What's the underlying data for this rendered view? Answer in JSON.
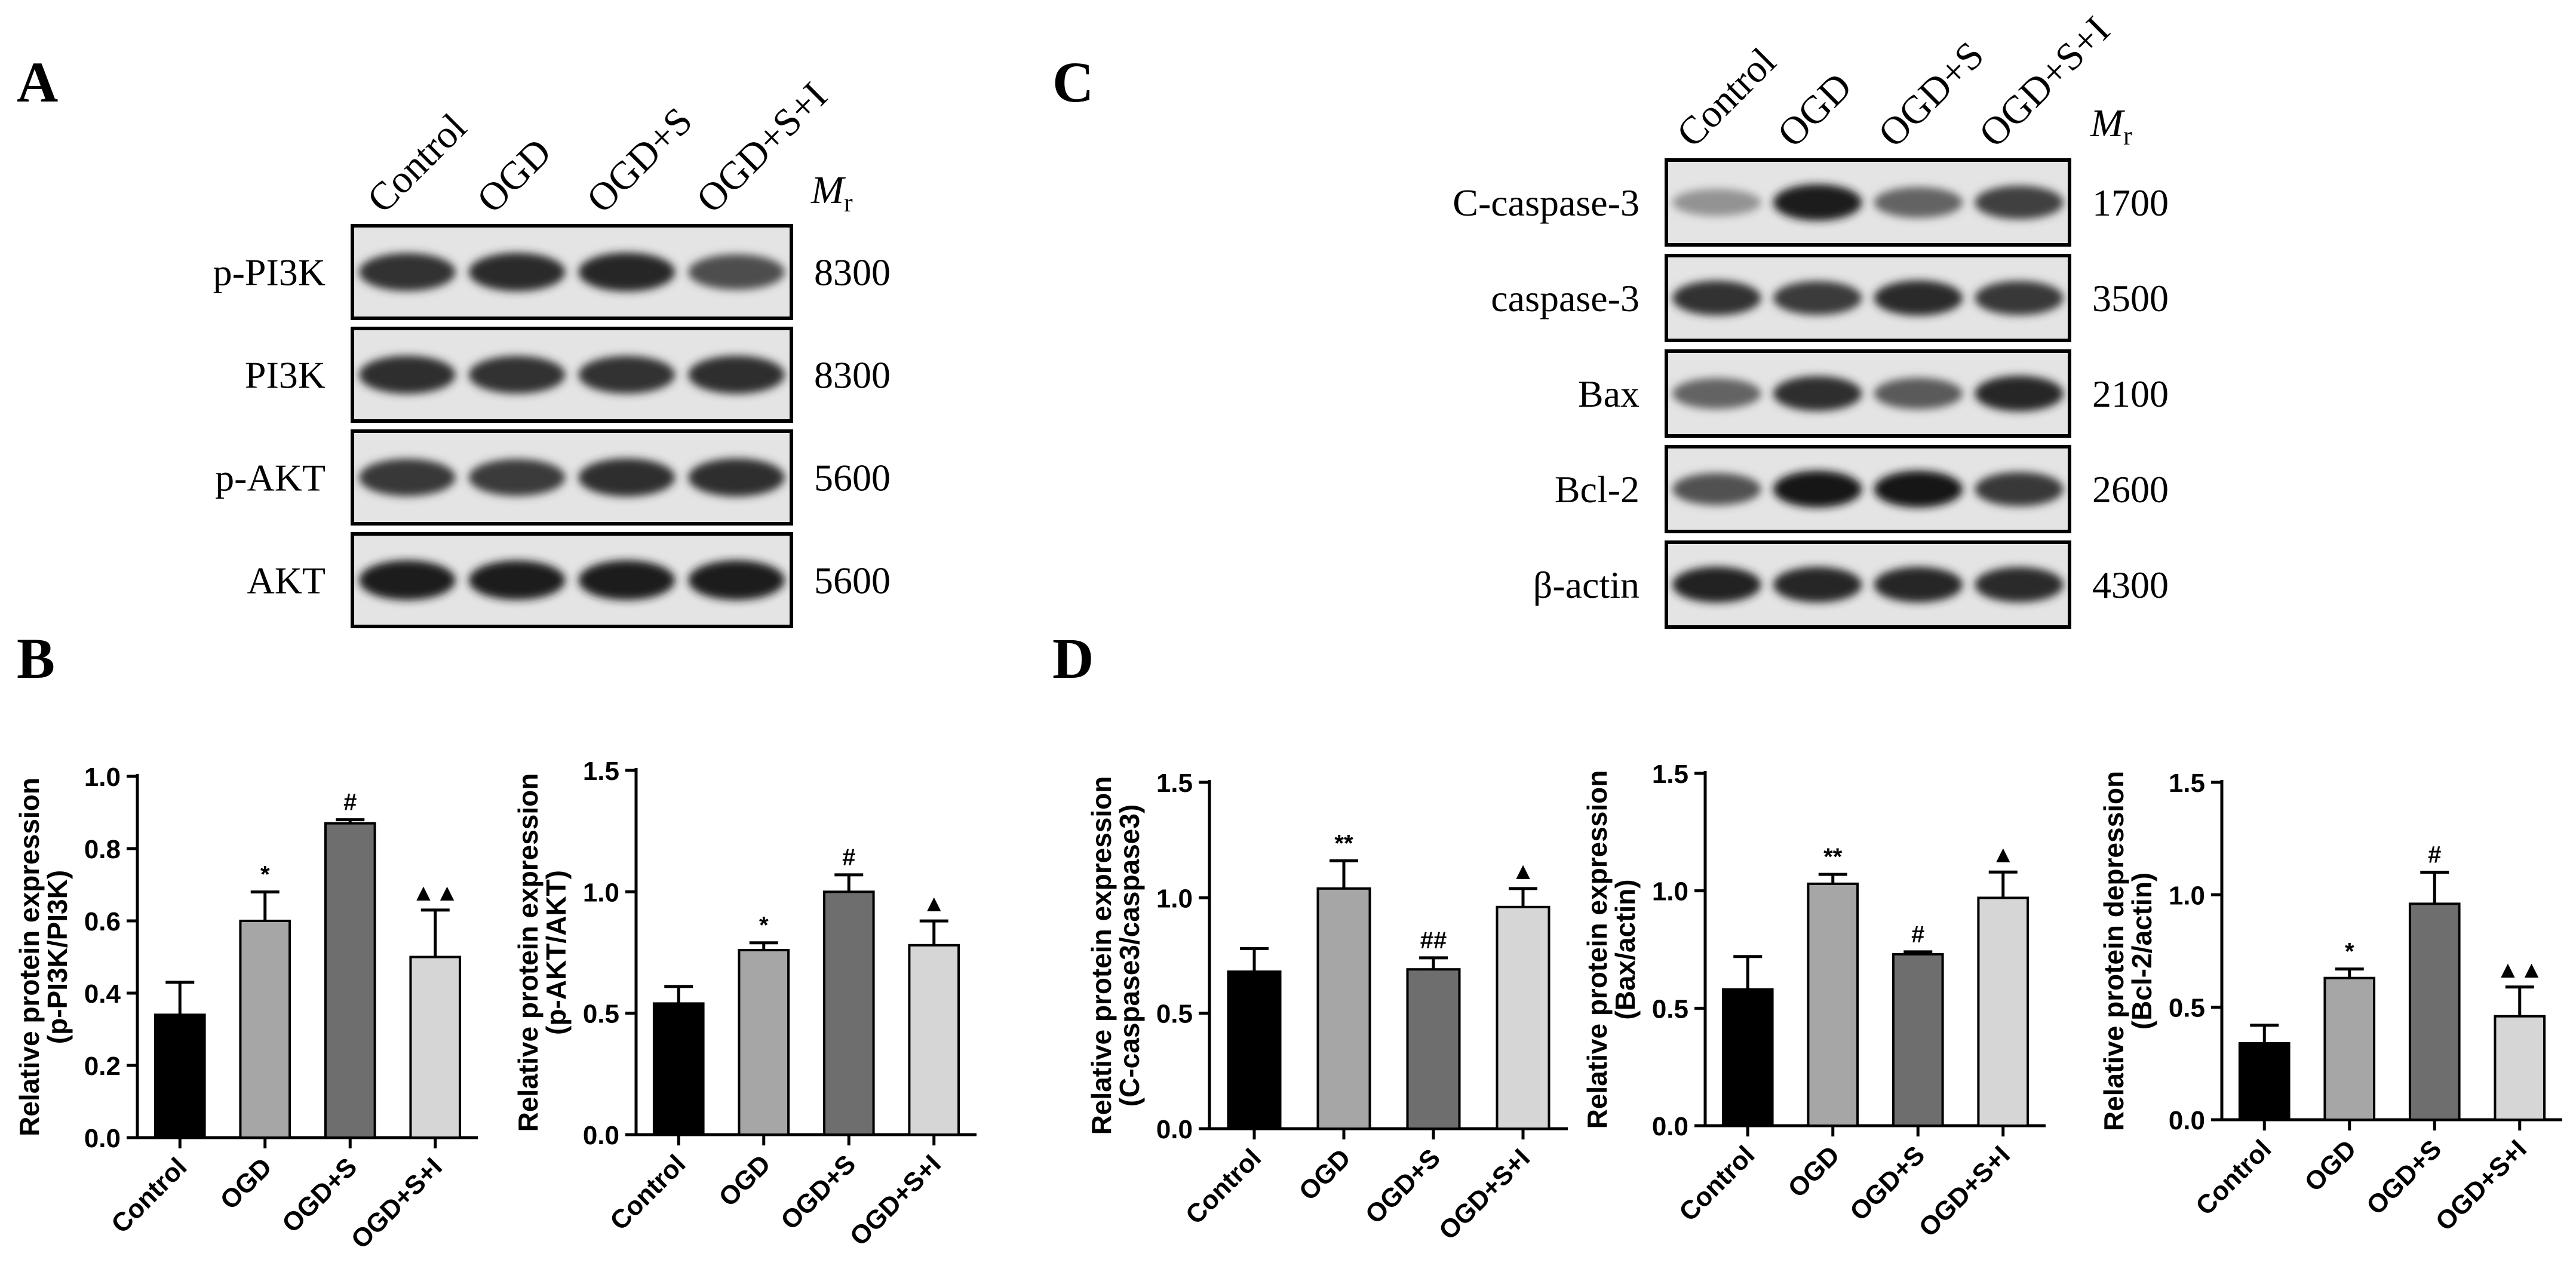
{
  "panels": {
    "A": {
      "letter": "A",
      "lanes": [
        "Control",
        "OGD",
        "OGD+S",
        "OGD+S+I"
      ],
      "mr_main": "M",
      "mr_sub": "r",
      "rows": [
        {
          "label": "p-PI3K",
          "mr": "8300",
          "intensity": [
            0.85,
            0.88,
            0.9,
            0.72
          ]
        },
        {
          "label": "PI3K",
          "mr": "8300",
          "intensity": [
            0.86,
            0.84,
            0.84,
            0.86
          ]
        },
        {
          "label": "p-AKT",
          "mr": "5600",
          "intensity": [
            0.82,
            0.8,
            0.86,
            0.86
          ]
        },
        {
          "label": "AKT",
          "mr": "5600",
          "intensity": [
            0.95,
            0.93,
            0.95,
            0.95
          ]
        }
      ]
    },
    "C": {
      "letter": "C",
      "lanes": [
        "Control",
        "OGD",
        "OGD+S",
        "OGD+S+I"
      ],
      "mr_main": "M",
      "mr_sub": "r",
      "rows": [
        {
          "label": "C-caspase-3",
          "mr": "1700",
          "intensity": [
            0.4,
            0.95,
            0.62,
            0.78
          ]
        },
        {
          "label": "caspase-3",
          "mr": "3500",
          "intensity": [
            0.85,
            0.8,
            0.88,
            0.82
          ]
        },
        {
          "label": "Bax",
          "mr": "2100",
          "intensity": [
            0.62,
            0.86,
            0.66,
            0.9
          ]
        },
        {
          "label": "Bcl-2",
          "mr": "2600",
          "intensity": [
            0.7,
            0.97,
            0.97,
            0.82
          ]
        },
        {
          "label": "β-actin",
          "mr": "4300",
          "intensity": [
            0.92,
            0.9,
            0.9,
            0.88
          ]
        }
      ]
    },
    "B": {
      "letter": "B"
    },
    "D": {
      "letter": "D"
    }
  },
  "chart_data": [
    {
      "type": "bar",
      "panel": "B",
      "categories": [
        "Control",
        "OGD",
        "OGD+S",
        "OGD+S+I"
      ],
      "values": [
        0.34,
        0.6,
        0.87,
        0.5
      ],
      "errors": [
        0.09,
        0.08,
        0.01,
        0.13
      ],
      "significance": [
        "",
        "*",
        "#",
        "▲▲"
      ],
      "colors": [
        "#000000",
        "#a6a6a6",
        "#6e6e6e",
        "#d6d6d6"
      ],
      "ylabel_lines": [
        "Relative protein expression",
        "(p-PI3K/PI3K)"
      ],
      "ylim": [
        0,
        1.0
      ],
      "yticks": [
        "0.0",
        "0.2",
        "0.4",
        "0.6",
        "0.8",
        "1.0"
      ]
    },
    {
      "type": "bar",
      "panel": "B",
      "categories": [
        "Control",
        "OGD",
        "OGD+S",
        "OGD+S+I"
      ],
      "values": [
        0.54,
        0.76,
        1.0,
        0.78
      ],
      "errors": [
        0.07,
        0.03,
        0.07,
        0.1
      ],
      "significance": [
        "",
        "*",
        "#",
        "▲"
      ],
      "colors": [
        "#000000",
        "#a6a6a6",
        "#6e6e6e",
        "#d6d6d6"
      ],
      "ylabel_lines": [
        "Relative protein expression",
        "(p-AKT/AKT)"
      ],
      "ylim": [
        0,
        1.5
      ],
      "yticks": [
        "0.0",
        "0.5",
        "1.0",
        "1.5"
      ]
    },
    {
      "type": "bar",
      "panel": "D",
      "categories": [
        "Control",
        "OGD",
        "OGD+S",
        "OGD+S+I"
      ],
      "values": [
        0.68,
        1.04,
        0.69,
        0.96
      ],
      "errors": [
        0.1,
        0.12,
        0.05,
        0.08
      ],
      "significance": [
        "",
        "**",
        "##",
        "▲"
      ],
      "colors": [
        "#000000",
        "#a6a6a6",
        "#6e6e6e",
        "#d6d6d6"
      ],
      "ylabel_lines": [
        "Relative protein expression",
        "(C-caspase3/caspase3)"
      ],
      "ylim": [
        0,
        1.5
      ],
      "yticks": [
        "0.0",
        "0.5",
        "1.0",
        "1.5"
      ]
    },
    {
      "type": "bar",
      "panel": "D",
      "categories": [
        "Control",
        "OGD",
        "OGD+S",
        "OGD+S+I"
      ],
      "values": [
        0.58,
        1.03,
        0.73,
        0.97
      ],
      "errors": [
        0.14,
        0.04,
        0.01,
        0.11
      ],
      "significance": [
        "",
        "**",
        "#",
        "▲"
      ],
      "colors": [
        "#000000",
        "#a6a6a6",
        "#6e6e6e",
        "#d6d6d6"
      ],
      "ylabel_lines": [
        "Relative protein expression",
        "(Bax/actin)"
      ],
      "ylim": [
        0,
        1.5
      ],
      "yticks": [
        "0.0",
        "0.5",
        "1.0",
        "1.5"
      ]
    },
    {
      "type": "bar",
      "panel": "D",
      "categories": [
        "Control",
        "OGD",
        "OGD+S",
        "OGD+S+I"
      ],
      "values": [
        0.34,
        0.63,
        0.96,
        0.46
      ],
      "errors": [
        0.08,
        0.04,
        0.14,
        0.13
      ],
      "significance": [
        "",
        "*",
        "#",
        "▲▲"
      ],
      "colors": [
        "#000000",
        "#a6a6a6",
        "#6e6e6e",
        "#d6d6d6"
      ],
      "ylabel_lines": [
        "Relative protein depression",
        "(Bcl-2/actin)"
      ],
      "ylim": [
        0,
        1.5
      ],
      "yticks": [
        "0.0",
        "0.5",
        "1.0",
        "1.5"
      ]
    }
  ]
}
